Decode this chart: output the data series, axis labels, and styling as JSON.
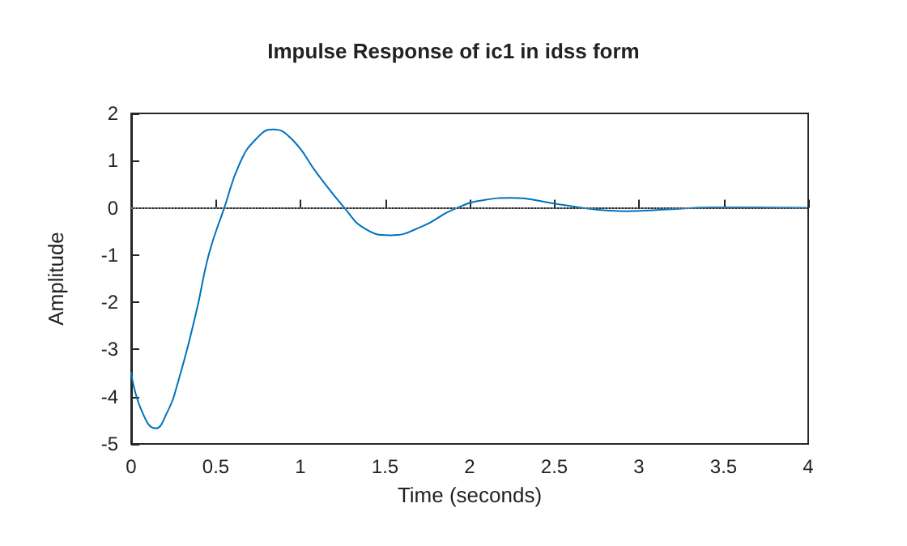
{
  "chart_data": {
    "type": "line",
    "title": "Impulse Response of ic1 in idss form",
    "xlabel": "Time (seconds)",
    "ylabel": "Amplitude",
    "x": [
      0,
      0.06,
      0.144,
      0.21,
      0.276,
      0.383,
      0.46,
      0.55,
      0.64,
      0.736,
      0.837,
      0.95,
      1.1,
      1.26,
      1.38,
      1.53,
      1.72,
      1.9,
      2.09,
      2.24,
      2.52,
      2.76,
      2.94,
      3.19,
      3.43,
      3.68,
      3.99
    ],
    "series": [
      {
        "color": "#0072bd",
        "values": [
          -3.49,
          -4.28,
          -4.67,
          -4.35,
          -3.7,
          -2.23,
          -0.97,
          0,
          0.93,
          1.45,
          1.66,
          1.45,
          0.72,
          0,
          -0.44,
          -0.58,
          -0.39,
          -0.04,
          0.17,
          0.21,
          0.08,
          -0.04,
          -0.07,
          -0.03,
          0.01,
          0.01,
          0
        ]
      }
    ],
    "xlim": [
      0,
      4
    ],
    "xticks": [
      0,
      0.5,
      1,
      1.5,
      2,
      2.5,
      3,
      3.5,
      4
    ],
    "ylim": [
      -5,
      2
    ],
    "yticks": [
      -5,
      -4,
      -3,
      -2,
      -1,
      0,
      1,
      2
    ],
    "ref_lines": [
      {
        "axis": "y",
        "value": 0,
        "color": "#808080",
        "line_style": "dotted"
      }
    ],
    "grid": false,
    "marker": "none",
    "line_style": "solid"
  }
}
